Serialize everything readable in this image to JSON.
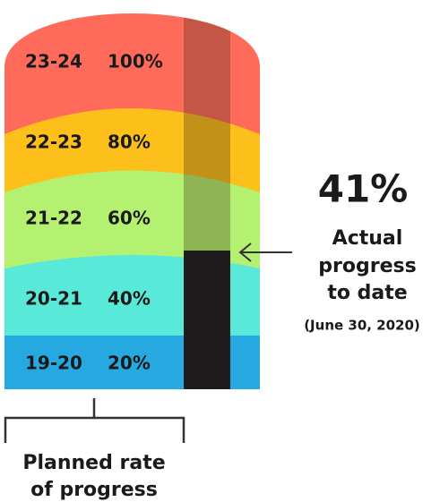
{
  "levels": [
    {
      "year": "23-24",
      "rate": "100%"
    },
    {
      "year": "22-23",
      "rate": "80%"
    },
    {
      "year": "21-22",
      "rate": "60%"
    },
    {
      "year": "20-21",
      "rate": "40%"
    },
    {
      "year": "19-20",
      "rate": "20%"
    }
  ],
  "actual": {
    "value": "41%",
    "label": [
      "Actual",
      "progress",
      "to date"
    ],
    "date": "(June 30, 2020)"
  },
  "planned": {
    "label": [
      "Planned rate",
      "of progress"
    ]
  }
}
